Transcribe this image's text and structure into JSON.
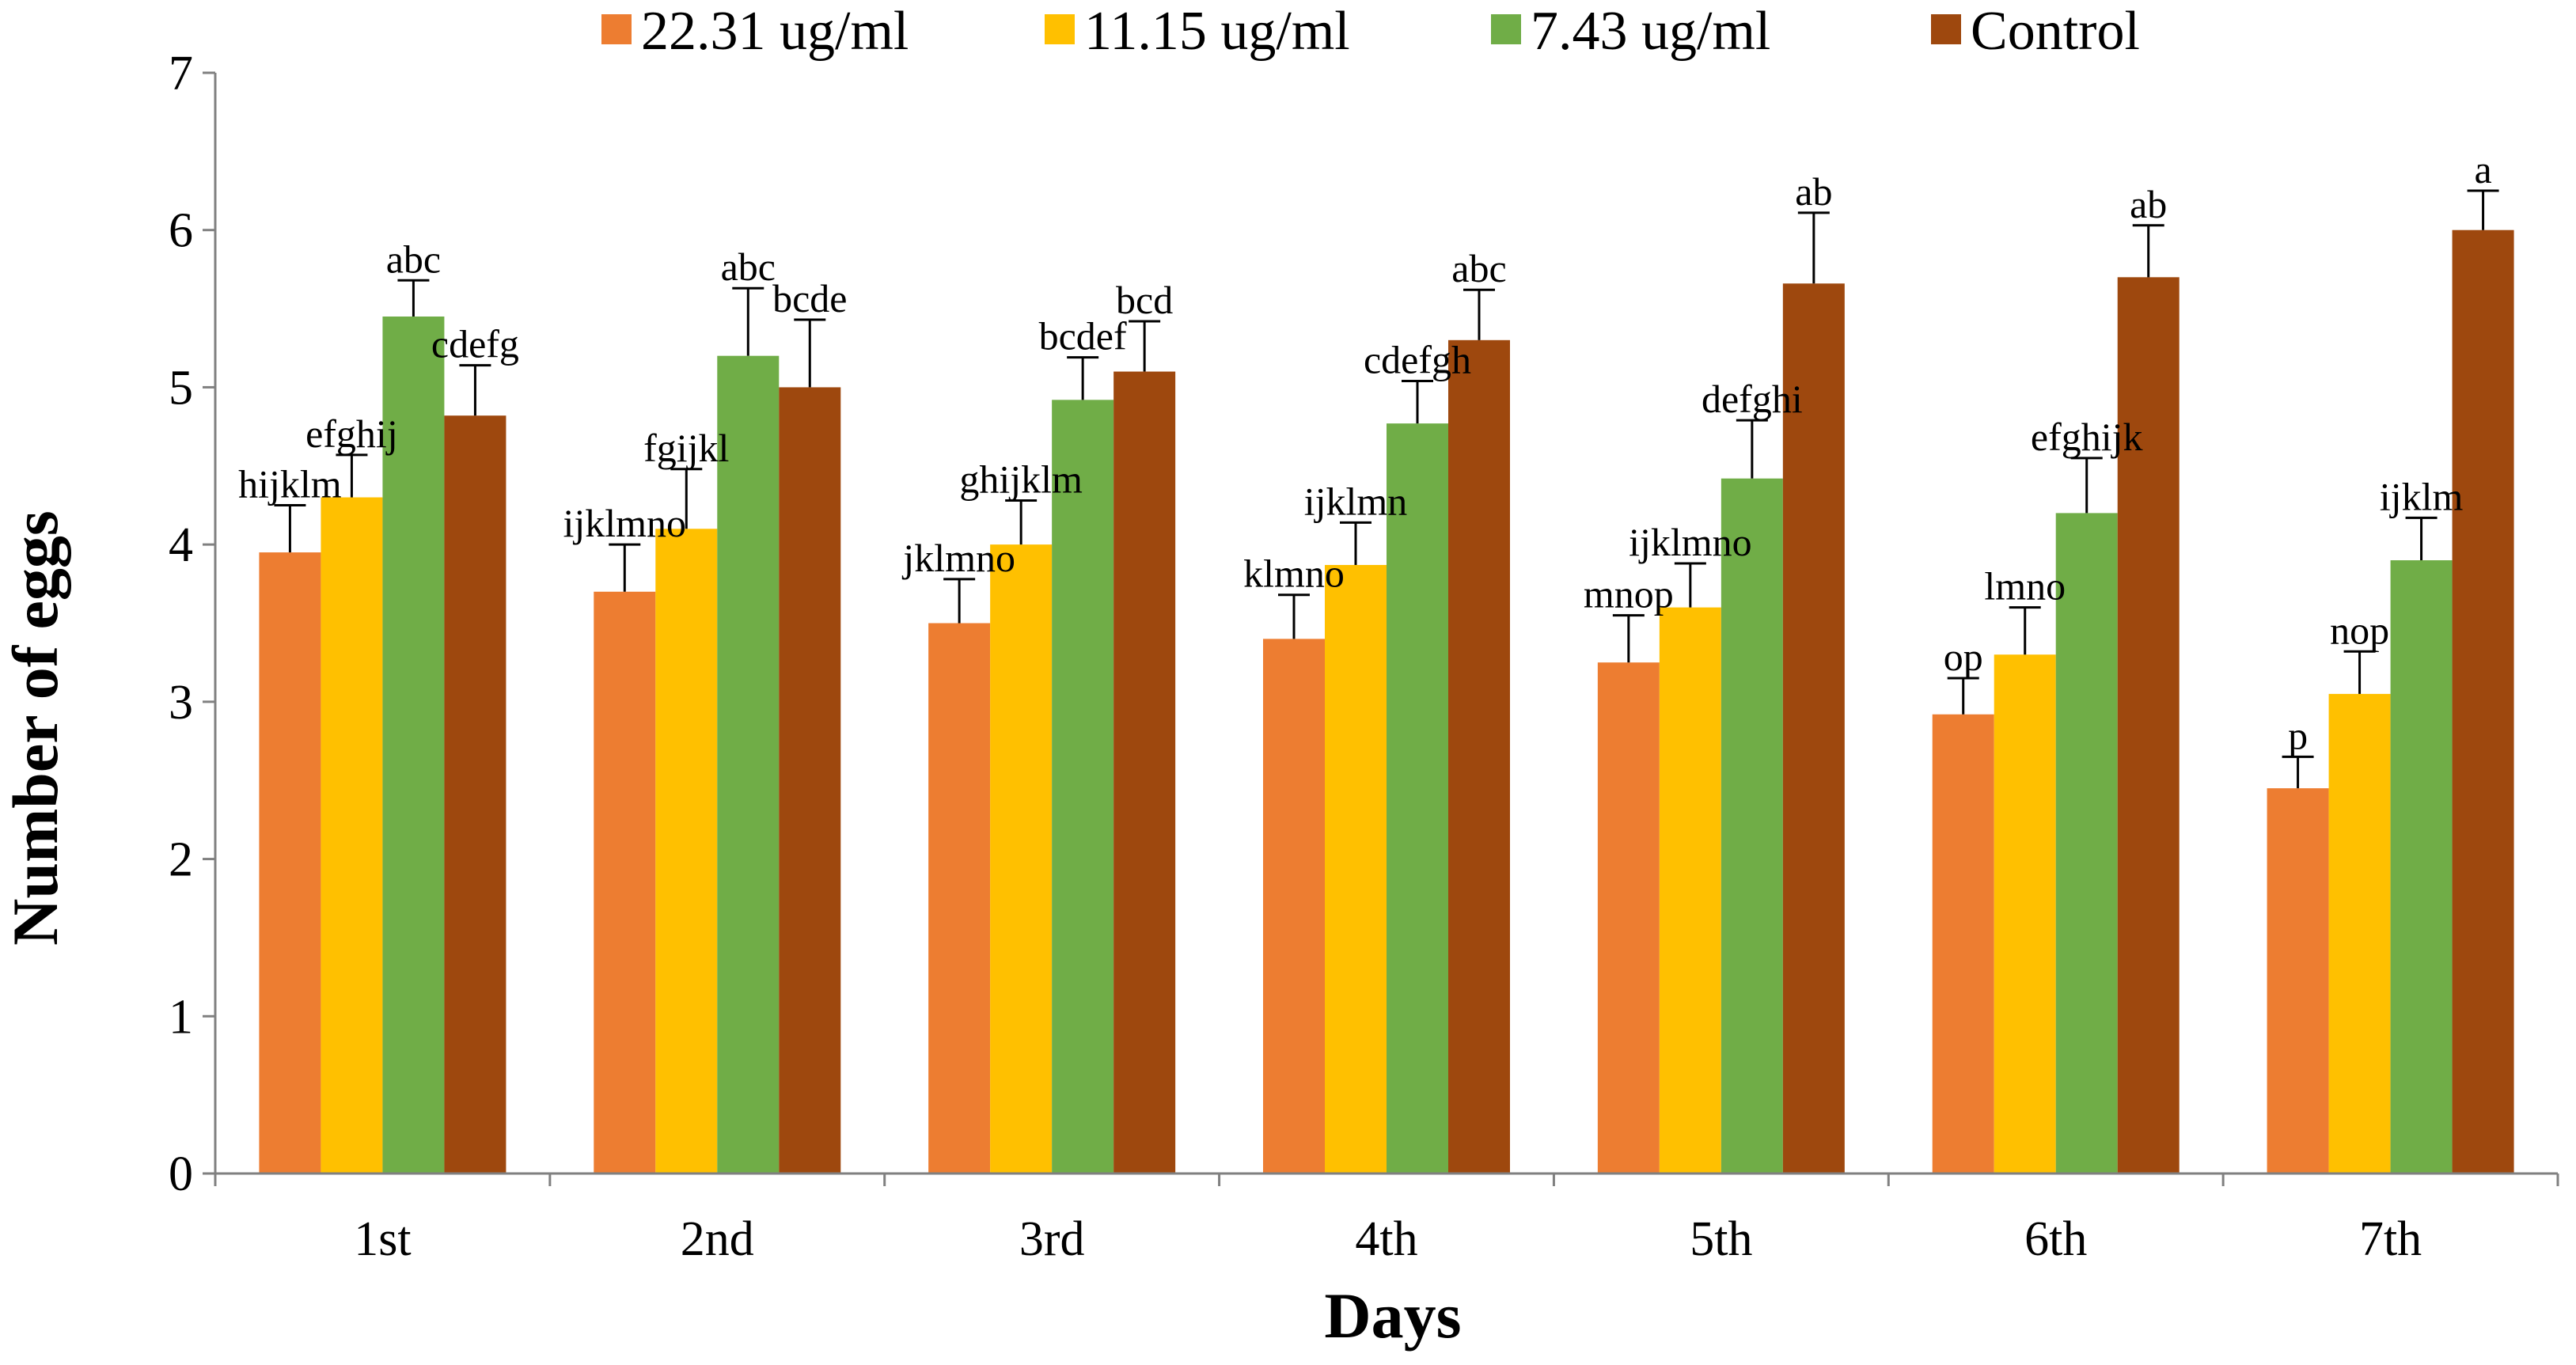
{
  "chart_data": {
    "type": "bar",
    "title": "",
    "xlabel": "Days",
    "ylabel": "Number of eggs",
    "ylim": [
      0,
      7
    ],
    "yticks": [
      "0",
      "1",
      "2",
      "3",
      "4",
      "5",
      "6",
      "7"
    ],
    "grid": false,
    "legend_position": "top",
    "categories": [
      "1st",
      "2nd",
      "3rd",
      "4th",
      "5th",
      "6th",
      "7th"
    ],
    "series": [
      {
        "name": "22.31 ug/ml",
        "color": "#ED7D31",
        "values": [
          3.95,
          3.7,
          3.5,
          3.4,
          3.25,
          2.92,
          2.45
        ],
        "errors": [
          0.3,
          0.3,
          0.28,
          0.28,
          0.3,
          0.23,
          0.2
        ],
        "labels": [
          "hijklm",
          "ijklmno",
          "jklmno",
          "klmno",
          "mnop",
          "op",
          "p"
        ]
      },
      {
        "name": "11.15 ug/ml",
        "color": "#FFC000",
        "values": [
          4.3,
          4.1,
          4.0,
          3.87,
          3.6,
          3.3,
          3.05
        ],
        "errors": [
          0.27,
          0.38,
          0.28,
          0.27,
          0.28,
          0.3,
          0.27
        ],
        "labels": [
          "efghij",
          "fgijkl",
          "ghijklm",
          "ijklmn",
          "ijklmno",
          "lmno",
          "nop"
        ]
      },
      {
        "name": "7.43 ug/ml",
        "color": "#70AD47",
        "values": [
          5.45,
          5.2,
          4.92,
          4.77,
          4.42,
          4.2,
          3.9
        ],
        "errors": [
          0.23,
          0.43,
          0.27,
          0.27,
          0.37,
          0.35,
          0.27
        ],
        "labels": [
          "abc",
          "abc",
          "bcdef",
          "cdefgh",
          "defghi",
          "efghijk",
          "ijklm"
        ]
      },
      {
        "name": "Control",
        "color": "#9E480E",
        "values": [
          4.82,
          5.0,
          5.1,
          5.3,
          5.66,
          5.7,
          6.0
        ],
        "errors": [
          0.32,
          0.43,
          0.32,
          0.32,
          0.45,
          0.33,
          0.25
        ],
        "labels": [
          "cdefg",
          "bcde",
          "bcd",
          "abc",
          "ab",
          "ab",
          "a"
        ]
      }
    ]
  }
}
